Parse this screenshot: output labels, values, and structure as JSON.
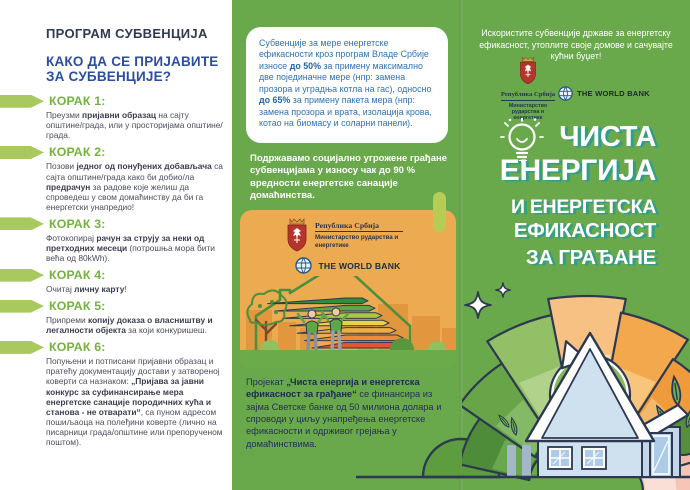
{
  "colors": {
    "green_bg": "#69a84b",
    "navy_outline": "#2c3950",
    "heading_navy": "#2f3a52",
    "subtitle_blue": "#2b4e9e",
    "step_green": "#74b23d",
    "chevron_lime": "#a9c95e",
    "bubble_blue": "#2e72b5",
    "card_orange": "#ecaa51",
    "city_orange": "#e2973f",
    "title_shadow_teal": "#2f9e8d",
    "crest_red": "#b5342b"
  },
  "left_panel": {
    "title": "ПРОГРАМ СУБВЕНЦИЈА",
    "subtitle": "КАКО ДА СЕ ПРИЈАВИТЕ ЗА СУБВЕНЦИЈЕ?",
    "steps": [
      {
        "label": "КОРАК 1:",
        "body": [
          [
            "Преузми ",
            0
          ],
          [
            "пријавни образац",
            1
          ],
          [
            " на сајту општине/града, или у просторијама општине/града.",
            0
          ]
        ]
      },
      {
        "label": "КОРАК 2:",
        "body": [
          [
            "Позови ",
            0
          ],
          [
            "једног од понуђених добављача",
            1
          ],
          [
            " са сајта општине/града како би добио/ла ",
            0
          ],
          [
            "предрачун",
            1
          ],
          [
            " за радове које желиш да спроведеш у свом домаћинству да би га енергетски унапредио!",
            0
          ]
        ]
      },
      {
        "label": "КОРАК 3:",
        "body": [
          [
            "Фотокопирај ",
            0
          ],
          [
            "рачун за струју за неки од претходних месеци",
            1
          ],
          [
            " (потрошња мора бити већа од 80kWh).",
            0
          ]
        ]
      },
      {
        "label": "КОРАК 4:",
        "body": [
          [
            "Очитај ",
            0
          ],
          [
            "личну карту",
            1
          ],
          [
            "!",
            0
          ]
        ]
      },
      {
        "label": "КОРАК 5:",
        "body": [
          [
            "Припреми ",
            0
          ],
          [
            "копију доказа о власништву и легалности објекта",
            1
          ],
          [
            " за који конкуришеш.",
            0
          ]
        ]
      },
      {
        "label": "КОРАК 6:",
        "body": [
          [
            "Попуњени и потписани пријавни образац и пратећу документацију достави у затвореној коверти са назнаком: ",
            0
          ],
          [
            "„Пријава за јавни конкурс за суфинансирање мера енергетске санације породичних кућа и станова - не отварати“",
            1
          ],
          [
            ", са пуном адресом пошиљаоца на полеђини коверте (лично на писарници града/општине или препорученом поштом).",
            0
          ]
        ]
      }
    ]
  },
  "logos": {
    "gov_name": "Република Србија",
    "ministry": "Министарство рударства и енергетике",
    "world_bank": "THE WORLD BANK"
  },
  "middle_panel": {
    "bubble": [
      [
        "Субвенције за мере енергетске ефикасности кроз програм Владе Србије износе ",
        0
      ],
      [
        "до 50%",
        1
      ],
      [
        " за примену максимално две појединачне мере (нпр: замена прозора и уградња котла на гас), односно ",
        0
      ],
      [
        "до 65%",
        1
      ],
      [
        " за примену пакета мера (нпр: замена прозора и врата, изолација крова, котао на биомасу и соларни панели).",
        0
      ]
    ],
    "support": "Подржавамо социјално угрожене грађане субвенцијама у износу чак до 90 % вредности енергетске санације домаћинства.",
    "project": [
      [
        "Пројекат ",
        0
      ],
      [
        "„Чиста енергија и енергетска ефикасност за грађане“",
        1
      ],
      [
        " се финансира из зајма Светске банке од 50 милиона долара и спроводи у циљу унапређења енергетске ефикасности и одрживог грејања у домаћинствима.",
        0
      ]
    ],
    "energy_arrow_colors": [
      "#2f8e3e",
      "#5fa743",
      "#a8c844",
      "#f0d03c",
      "#efae3b",
      "#e98e35",
      "#df5730"
    ]
  },
  "right_panel": {
    "tagline": "Искористите субвенције државе за енергетску ефикасност, утоплите своје домове и сачувајте кућни буџет!",
    "title_lines": [
      "ЧИСТА",
      "ЕНЕРГИЈА",
      "И ЕНЕРГЕТСКА",
      "ЕФИКАСНОСТ",
      "ЗА ГРАЂАНЕ"
    ],
    "gauge_segments": [
      [
        "#4f8c39",
        "#6aa850"
      ],
      [
        "#67a548",
        "#84ba65"
      ],
      [
        "#93bf66",
        "#b1d28a"
      ],
      [
        "#f6c183",
        "#fadcb2"
      ],
      [
        "#f3a84d",
        "#f8c57f"
      ],
      [
        "#ef9a3b",
        "#f4b76e"
      ],
      [
        "#f2b9a6",
        "#f7d6c9"
      ],
      [
        "#f5c6b8",
        "#fadfd6"
      ]
    ]
  }
}
